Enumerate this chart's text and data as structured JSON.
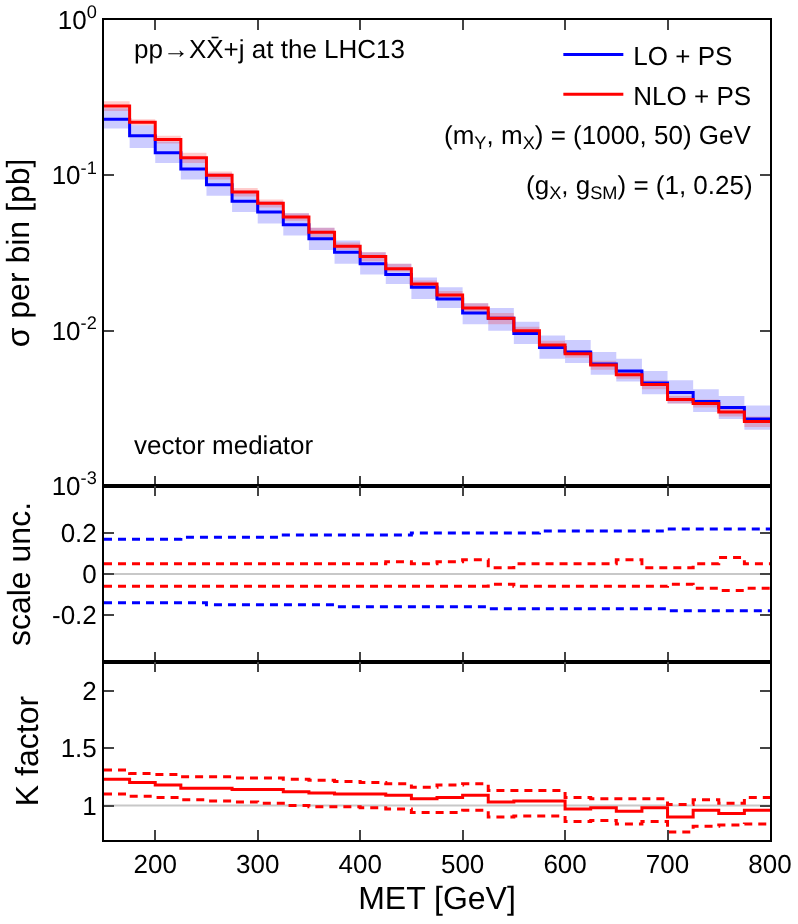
{
  "chart_data": [
    {
      "type": "step",
      "ylabel": "σ per bin [pb]",
      "log": "y",
      "legend": "top right",
      "tick_labels": "y",
      "x": [
        150,
        175,
        200,
        225,
        250,
        275,
        300,
        325,
        350,
        375,
        400,
        425,
        450,
        475,
        500,
        525,
        550,
        575,
        600,
        625,
        650,
        675,
        700,
        725,
        750,
        775,
        800
      ],
      "xlim": [
        150,
        800
      ],
      "xticks": [
        {
          "value": 200,
          "label": null
        },
        {
          "value": 300,
          "label": null
        },
        {
          "value": 400,
          "label": null
        },
        {
          "value": 500,
          "label": null
        },
        {
          "value": 600,
          "label": null
        },
        {
          "value": 700,
          "label": null
        },
        {
          "value": 800,
          "label": null
        }
      ],
      "ylim": [
        0.001,
        1
      ],
      "yticks": [
        {
          "value": 0.001,
          "label": "10$^{-3}$"
        },
        {
          "value": 0.01,
          "label": "10$^{-2}$"
        },
        {
          "value": 0.1,
          "label": "10$^{-1}$"
        },
        {
          "value": 1,
          "label": "10$^{0}$"
        }
      ],
      "annotations": [
        "pp→XX̄+j at the LHC13",
        "(m$_{Y}$, m$_{X}$) = (1000, 50) GeV",
        "(g$_{X}$, g$_{SM}$) = (1, 0.25)",
        "vector mediator"
      ],
      "series": [
        {
          "name": "LO + PS",
          "color": "#0000ff",
          "values": [
            0.23,
            0.18,
            0.14,
            0.11,
            0.087,
            0.068,
            0.058,
            0.048,
            0.039,
            0.032,
            0.027,
            0.023,
            0.019,
            0.016,
            0.013,
            0.012,
            0.0096,
            0.0078,
            0.0073,
            0.0061,
            0.0055,
            0.0046,
            0.004,
            0.0035,
            0.0032,
            0.0027,
            0.0027
          ],
          "lower": [
            0.2,
            0.15,
            0.12,
            0.094,
            0.074,
            0.058,
            0.049,
            0.041,
            0.033,
            0.027,
            0.023,
            0.02,
            0.016,
            0.014,
            0.011,
            0.01,
            0.0082,
            0.0066,
            0.0062,
            0.0052,
            0.0047,
            0.0039,
            0.0034,
            0.003,
            0.0027,
            0.0023,
            0.0023
          ],
          "upper": [
            0.27,
            0.21,
            0.165,
            0.13,
            0.103,
            0.08,
            0.068,
            0.057,
            0.046,
            0.038,
            0.032,
            0.027,
            0.022,
            0.019,
            0.015,
            0.014,
            0.0114,
            0.0093,
            0.0087,
            0.0073,
            0.0066,
            0.0055,
            0.0048,
            0.0042,
            0.0038,
            0.0033,
            0.0033
          ]
        },
        {
          "name": "NLO + PS",
          "color": "#ff0000",
          "values": [
            0.28,
            0.22,
            0.17,
            0.13,
            0.1,
            0.078,
            0.066,
            0.054,
            0.043,
            0.035,
            0.03,
            0.025,
            0.02,
            0.017,
            0.014,
            0.012,
            0.01,
            0.0081,
            0.0071,
            0.006,
            0.0052,
            0.0045,
            0.0036,
            0.0034,
            0.003,
            0.0026,
            0.0026
          ],
          "lower": [
            0.26,
            0.21,
            0.16,
            0.12,
            0.094,
            0.073,
            0.062,
            0.051,
            0.04,
            0.033,
            0.028,
            0.024,
            0.019,
            0.016,
            0.013,
            0.011,
            0.0094,
            0.0076,
            0.0067,
            0.0056,
            0.0049,
            0.0042,
            0.0034,
            0.0032,
            0.0028,
            0.0024,
            0.0024
          ],
          "upper": [
            0.3,
            0.23,
            0.18,
            0.14,
            0.106,
            0.083,
            0.07,
            0.057,
            0.046,
            0.037,
            0.032,
            0.027,
            0.021,
            0.018,
            0.015,
            0.013,
            0.0106,
            0.0086,
            0.0075,
            0.0064,
            0.0055,
            0.0048,
            0.0038,
            0.0036,
            0.0032,
            0.0028,
            0.0028
          ]
        }
      ]
    },
    {
      "type": "step",
      "ylabel": "scale unc.",
      "tick_labels": "y",
      "line_style": "dashed",
      "x": [
        150,
        175,
        200,
        225,
        250,
        275,
        300,
        325,
        350,
        375,
        400,
        425,
        450,
        475,
        500,
        525,
        550,
        575,
        600,
        625,
        650,
        675,
        700,
        725,
        750,
        775,
        800
      ],
      "xlim": [
        150,
        800
      ],
      "xticks": [
        {
          "value": 200,
          "label": null
        },
        {
          "value": 300,
          "label": null
        },
        {
          "value": 400,
          "label": null
        },
        {
          "value": 500,
          "label": null
        },
        {
          "value": 600,
          "label": null
        },
        {
          "value": 700,
          "label": null
        },
        {
          "value": 800,
          "label": null
        }
      ],
      "ylim": [
        -0.43,
        0.43
      ],
      "yticks": [
        -0.2,
        0,
        0.2
      ],
      "ref_lines": [
        {
          "axis": "y",
          "value": 0,
          "color": "#c8c8c8"
        }
      ],
      "series": [
        {
          "color": "#0000ff",
          "values": [
            0.17,
            0.17,
            0.17,
            0.18,
            0.18,
            0.18,
            0.18,
            0.19,
            0.19,
            0.19,
            0.19,
            0.19,
            0.2,
            0.2,
            0.2,
            0.2,
            0.2,
            0.21,
            0.21,
            0.21,
            0.21,
            0.21,
            0.22,
            0.22,
            0.22,
            0.22,
            0.22
          ]
        },
        {
          "color": "#0000ff",
          "values": [
            -0.14,
            -0.14,
            -0.14,
            -0.14,
            -0.15,
            -0.15,
            -0.15,
            -0.15,
            -0.15,
            -0.16,
            -0.16,
            -0.16,
            -0.16,
            -0.16,
            -0.16,
            -0.17,
            -0.17,
            -0.17,
            -0.17,
            -0.17,
            -0.17,
            -0.17,
            -0.18,
            -0.18,
            -0.18,
            -0.18,
            -0.18
          ]
        },
        {
          "color": "#ff0000",
          "values": [
            0.05,
            0.05,
            0.05,
            0.05,
            0.05,
            0.05,
            0.05,
            0.05,
            0.05,
            0.05,
            0.05,
            0.06,
            0.05,
            0.06,
            0.07,
            0.03,
            0.05,
            0.05,
            0.05,
            0.05,
            0.07,
            0.03,
            0.03,
            0.05,
            0.08,
            0.05,
            0.05
          ]
        },
        {
          "color": "#ff0000",
          "values": [
            -0.06,
            -0.06,
            -0.06,
            -0.06,
            -0.06,
            -0.06,
            -0.06,
            -0.06,
            -0.06,
            -0.06,
            -0.06,
            -0.06,
            -0.06,
            -0.06,
            -0.06,
            -0.05,
            -0.06,
            -0.06,
            -0.06,
            -0.06,
            -0.06,
            -0.06,
            -0.05,
            -0.07,
            -0.08,
            -0.07,
            -0.07
          ]
        }
      ]
    },
    {
      "type": "step",
      "ylabel": "K factor",
      "xlabel": "MET [GeV]",
      "x": [
        150,
        175,
        200,
        225,
        250,
        275,
        300,
        325,
        350,
        375,
        400,
        425,
        450,
        475,
        500,
        525,
        550,
        575,
        600,
        625,
        650,
        675,
        700,
        725,
        750,
        775,
        800
      ],
      "xlim": [
        150,
        800
      ],
      "xticks": [
        200,
        300,
        400,
        500,
        600,
        700,
        800
      ],
      "ylim": [
        0.7,
        2.25
      ],
      "yticks": [
        1,
        1.5,
        2
      ],
      "ref_lines": [
        {
          "axis": "y",
          "value": 1,
          "color": "#c8c8c8"
        }
      ],
      "series": [
        {
          "color": "#ff0000",
          "line_style": "solid",
          "values": [
            1.23,
            1.2,
            1.18,
            1.15,
            1.15,
            1.14,
            1.14,
            1.12,
            1.11,
            1.1,
            1.1,
            1.09,
            1.06,
            1.07,
            1.09,
            1.03,
            1.04,
            1.04,
            0.97,
            0.98,
            0.95,
            0.98,
            0.9,
            0.96,
            0.93,
            0.96,
            0.96
          ]
        },
        {
          "color": "#ff0000",
          "line_style": "dashed",
          "values": [
            1.31,
            1.28,
            1.27,
            1.25,
            1.25,
            1.24,
            1.24,
            1.23,
            1.22,
            1.21,
            1.2,
            1.19,
            1.16,
            1.18,
            1.19,
            1.13,
            1.13,
            1.13,
            1.07,
            1.06,
            1.06,
            1.06,
            1.01,
            1.05,
            1.02,
            1.07,
            1.07
          ]
        },
        {
          "color": "#ff0000",
          "line_style": "dashed",
          "values": [
            1.1,
            1.08,
            1.07,
            1.05,
            1.04,
            1.03,
            1.02,
            1.0,
            0.99,
            0.99,
            0.98,
            0.97,
            0.94,
            0.94,
            0.96,
            0.9,
            0.91,
            0.91,
            0.86,
            0.87,
            0.84,
            0.86,
            0.77,
            0.82,
            0.83,
            0.84,
            0.84
          ]
        }
      ]
    }
  ]
}
